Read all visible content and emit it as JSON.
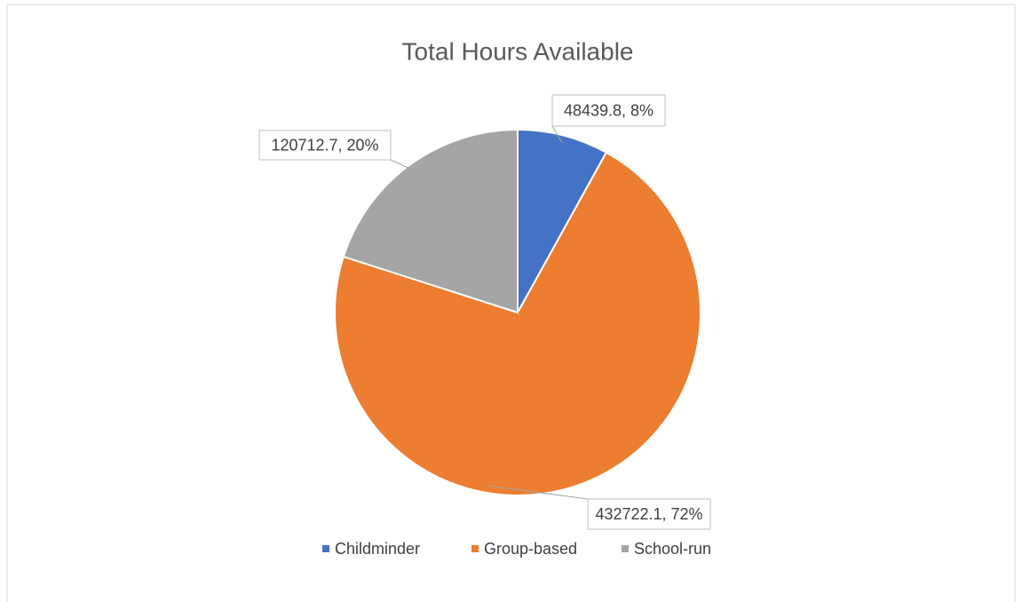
{
  "chart_data": {
    "type": "pie",
    "title": "Total Hours Available",
    "categories": [
      "Childminder",
      "Group-based",
      "School-run"
    ],
    "values": [
      48439.8,
      432722.1,
      120712.7
    ],
    "value_labels": [
      "48439.8, 8%",
      "432722.1, 72%",
      "120712.7, 20%"
    ],
    "colors": [
      "#4472c4",
      "#ed7d31",
      "#a5a5a5"
    ],
    "legend": "bottom"
  }
}
